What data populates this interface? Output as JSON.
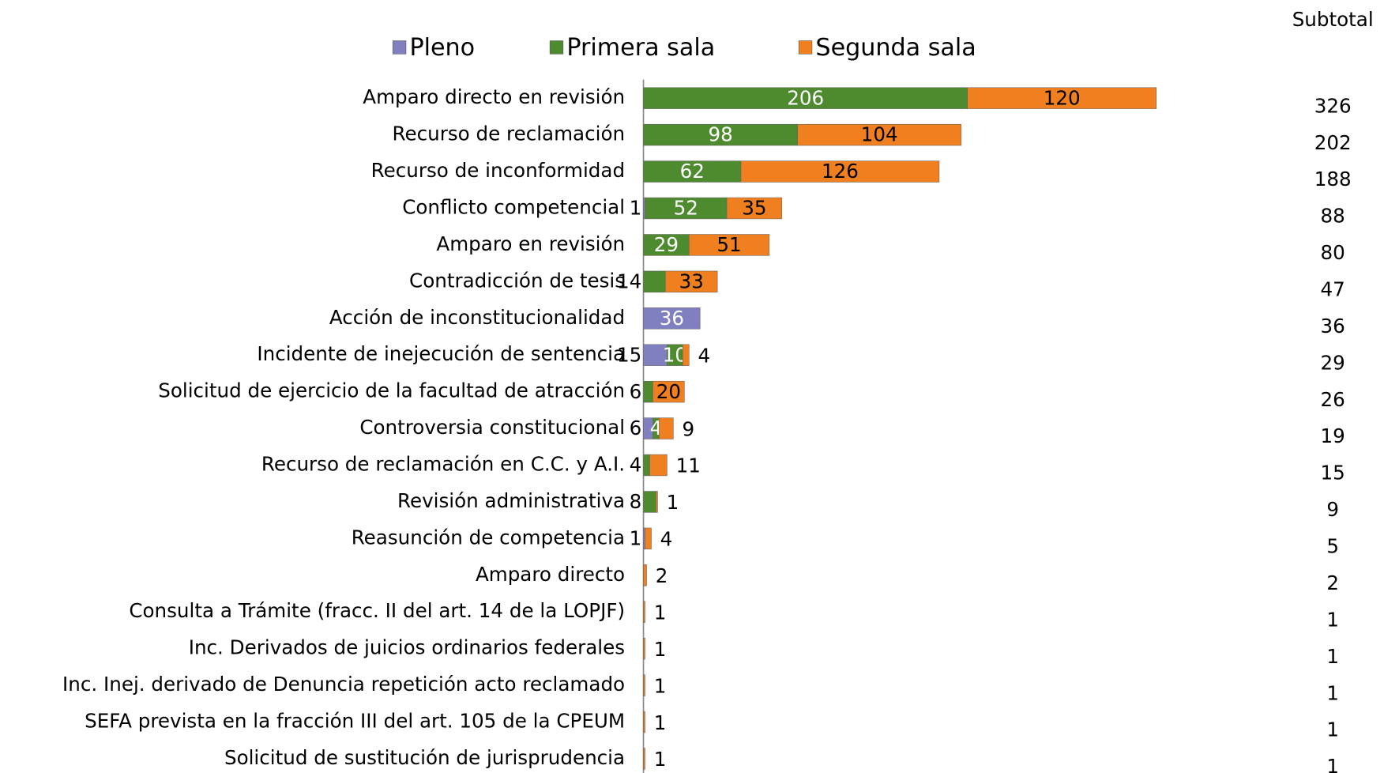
{
  "chart_data": {
    "type": "stacked-bar",
    "orientation": "horizontal",
    "categories": [
      "Amparo directo en revisión",
      "Recurso de reclamación",
      "Recurso de inconformidad",
      "Conflicto competencial",
      "Amparo en revisión",
      "Contradicción de tesis",
      "Acción de inconstitucionalidad",
      "Incidente de inejecución de sentencia",
      "Solicitud de ejercicio de la facultad de atracción",
      "Controversia constitucional",
      "Recurso de reclamación en C.C. y A.I.",
      "Revisión administrativa",
      "Reasunción de competencia",
      "Amparo directo",
      "Consulta a Trámite  (fracc. II del art. 14 de la LOPJF)",
      "Inc. Derivados de juicios ordinarios federales",
      "Inc. Inej. derivado de Denuncia repetición acto reclamado",
      "SEFA prevista en la fracción III del art. 105 de la CPEUM",
      "Solicitud de sustitución de jurisprudencia"
    ],
    "series": [
      {
        "name": "Pleno",
        "color": "#8080c0",
        "label_color": "#ffffff",
        "values": [
          null,
          null,
          null,
          1,
          null,
          null,
          36,
          15,
          null,
          6,
          null,
          null,
          1,
          null,
          null,
          null,
          null,
          null,
          null
        ]
      },
      {
        "name": "Primera sala",
        "color": "#4e8a2e",
        "label_color": "#ffffff",
        "values": [
          206,
          98,
          62,
          52,
          29,
          14,
          null,
          10,
          6,
          4,
          4,
          8,
          null,
          null,
          null,
          null,
          null,
          null,
          null
        ]
      },
      {
        "name": "Segunda sala",
        "color": "#f07f20",
        "label_color": "#000000",
        "values": [
          120,
          104,
          126,
          35,
          51,
          33,
          null,
          4,
          20,
          9,
          11,
          1,
          4,
          2,
          1,
          1,
          1,
          1,
          1
        ]
      }
    ],
    "subtotal": {
      "label": "Subtotal",
      "values": [
        326,
        202,
        188,
        88,
        80,
        47,
        36,
        29,
        26,
        19,
        15,
        9,
        5,
        2,
        1,
        1,
        1,
        1,
        1
      ]
    },
    "legend": "top"
  }
}
